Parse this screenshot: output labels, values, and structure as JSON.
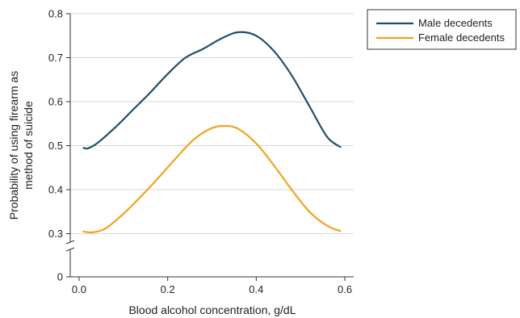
{
  "chart_data": {
    "type": "line",
    "xlabel": "Blood alcohol concentration, g/dL",
    "ylabel_lines": [
      "Probability of using firearm as",
      "method of suicide"
    ],
    "xlim": [
      -0.02,
      0.62
    ],
    "ylim": [
      0,
      0.8
    ],
    "x_ticks": [
      0.0,
      0.2,
      0.4,
      0.6
    ],
    "x_tick_labels": [
      "0.0",
      "0.2",
      "0.4",
      "0.6"
    ],
    "y_ticks": [
      0,
      0.3,
      0.4,
      0.5,
      0.6,
      0.7,
      0.8
    ],
    "y_tick_labels": [
      "0",
      "0.3",
      "0.4",
      "0.5",
      "0.6",
      "0.7",
      "0.8"
    ],
    "y_axis_break": true,
    "grid": "horizontal",
    "legend_position": "top-right",
    "series": [
      {
        "name": "Male decedents",
        "color": "#1f4e6b",
        "x": [
          0.01,
          0.02,
          0.04,
          0.08,
          0.12,
          0.16,
          0.2,
          0.24,
          0.28,
          0.32,
          0.36,
          0.4,
          0.44,
          0.48,
          0.52,
          0.56,
          0.59
        ],
        "y": [
          0.495,
          0.494,
          0.505,
          0.54,
          0.58,
          0.62,
          0.663,
          0.7,
          0.72,
          0.743,
          0.758,
          0.75,
          0.715,
          0.66,
          0.59,
          0.52,
          0.497
        ]
      },
      {
        "name": "Female decedents",
        "color": "#f2a31f",
        "x": [
          0.01,
          0.03,
          0.06,
          0.1,
          0.14,
          0.18,
          0.22,
          0.26,
          0.3,
          0.33,
          0.36,
          0.4,
          0.44,
          0.48,
          0.52,
          0.56,
          0.59
        ],
        "y": [
          0.305,
          0.303,
          0.312,
          0.345,
          0.385,
          0.428,
          0.473,
          0.515,
          0.54,
          0.545,
          0.538,
          0.505,
          0.455,
          0.4,
          0.35,
          0.318,
          0.306
        ]
      }
    ]
  }
}
